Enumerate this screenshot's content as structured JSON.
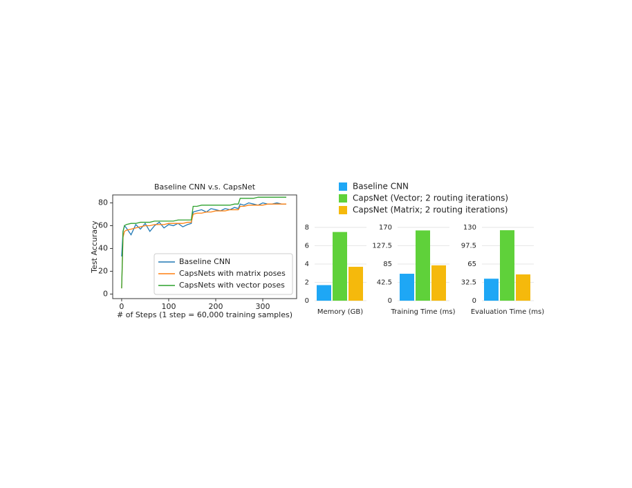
{
  "chart_data": [
    {
      "type": "line",
      "title": "Baseline CNN v.s. CapsNet",
      "xlabel": "# of Steps (1 step = 60,000 training samples)",
      "ylabel": "Test Accuracy",
      "x": [
        0,
        3,
        6,
        10,
        20,
        30,
        40,
        50,
        60,
        70,
        80,
        90,
        100,
        110,
        120,
        130,
        140,
        148,
        152,
        160,
        170,
        180,
        190,
        200,
        210,
        220,
        230,
        240,
        248,
        252,
        260,
        270,
        280,
        290,
        300,
        310,
        320,
        330,
        340,
        350
      ],
      "series": [
        {
          "name": "Baseline CNN",
          "color": "#1f77b4",
          "values": [
            33,
            55,
            60,
            58,
            52,
            61,
            57,
            62,
            55,
            60,
            63,
            58,
            61,
            60,
            62,
            59,
            61,
            62,
            72,
            73,
            74,
            72,
            75,
            74,
            73,
            75,
            74,
            76,
            75,
            79,
            78,
            80,
            79,
            78,
            80,
            79,
            79,
            80,
            79,
            79
          ]
        },
        {
          "name": "CapsNets with matrix poses",
          "color": "#ff7f0e",
          "values": [
            5,
            50,
            55,
            56,
            57,
            58,
            59,
            60,
            60,
            61,
            61,
            61,
            62,
            62,
            62,
            62,
            63,
            63,
            70,
            71,
            71,
            72,
            72,
            73,
            73,
            73,
            74,
            74,
            74,
            77,
            77,
            78,
            78,
            78,
            78,
            79,
            79,
            79,
            79,
            79
          ]
        },
        {
          "name": "CapsNets with vector poses",
          "color": "#2ca02c",
          "values": [
            5,
            55,
            60,
            61,
            62,
            62,
            63,
            63,
            63,
            64,
            64,
            64,
            64,
            64,
            65,
            65,
            65,
            65,
            77,
            77,
            78,
            78,
            78,
            78,
            78,
            78,
            78,
            79,
            79,
            84,
            84,
            84,
            84,
            85,
            85,
            85,
            85,
            85,
            85,
            85
          ]
        }
      ],
      "xlim": [
        -19,
        372
      ],
      "xticks": [
        0,
        100,
        200,
        300
      ],
      "ylim": [
        -4,
        87
      ],
      "yticks": [
        0,
        20,
        40,
        60,
        80
      ],
      "legend": "lower right"
    },
    {
      "type": "bar",
      "xlabel": "Memory (GB)",
      "ylim": [
        0,
        8
      ],
      "yticks": [
        0,
        2,
        4,
        6,
        8
      ],
      "grid": true,
      "series": [
        {
          "name": "Baseline CNN",
          "color": "#1ea7f5",
          "values": [
            1.7
          ]
        },
        {
          "name": "CapsNet (Vector; 2 routing iterations)",
          "color": "#5fd13a",
          "values": [
            7.5
          ]
        },
        {
          "name": "CapsNet (Matrix; 2 routing iterations)",
          "color": "#f5b90c",
          "values": [
            3.7
          ]
        }
      ]
    },
    {
      "type": "bar",
      "xlabel": "Training Time (ms)",
      "ylim": [
        0,
        170
      ],
      "yticks": [
        0,
        42.5,
        85,
        127.5,
        170
      ],
      "grid": true,
      "series": [
        {
          "color": "#1ea7f5",
          "values": [
            62.5
          ]
        },
        {
          "color": "#5fd13a",
          "values": [
            163
          ]
        },
        {
          "color": "#f5b90c",
          "values": [
            82
          ]
        }
      ]
    },
    {
      "type": "bar",
      "xlabel": "Evaluation Time (ms)",
      "ylim": [
        0,
        130
      ],
      "yticks": [
        0,
        32.5,
        65,
        97.5,
        130
      ],
      "grid": true,
      "series": [
        {
          "color": "#1ea7f5",
          "values": [
            39
          ]
        },
        {
          "color": "#5fd13a",
          "values": [
            125
          ]
        },
        {
          "color": "#f5b90c",
          "values": [
            46.6
          ]
        }
      ]
    }
  ]
}
